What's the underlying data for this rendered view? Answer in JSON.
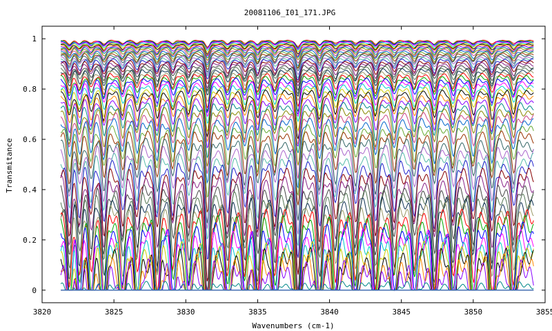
{
  "chart_data": {
    "type": "line",
    "title": "20081106_I01_171.JPG",
    "xlabel": "Wavenumbers (cm-1)",
    "ylabel": "Transmitance",
    "xlim": [
      3820,
      3855
    ],
    "ylim": [
      -0.05,
      1.05
    ],
    "x_ticks": [
      "3820",
      "3825",
      "3830",
      "3835",
      "3840",
      "3845",
      "3850",
      "3855"
    ],
    "y_ticks": [
      "0",
      "0.2",
      "0.4",
      "0.6",
      "0.8",
      "1"
    ],
    "x_range": [
      3821.3,
      3854.2
    ],
    "grid": false,
    "legend": "none",
    "absorption_lines_cm1": [
      3821.9,
      3822.6,
      3823.4,
      3824.3,
      3825.6,
      3826.6,
      3828.0,
      3829.1,
      3830.2,
      3831.5,
      3832.9,
      3834.1,
      3835.0,
      3836.2,
      3837.8,
      3839.3,
      3840.4,
      3841.8,
      3843.2,
      3844.5,
      3845.9,
      3847.3,
      3848.6,
      3850.0,
      3851.3,
      3852.8
    ],
    "series_baselines": [
      0.995,
      0.993,
      0.991,
      0.989,
      0.986,
      0.983,
      0.98,
      0.977,
      0.973,
      0.969,
      0.965,
      0.96,
      0.955,
      0.95,
      0.945,
      0.94,
      0.934,
      0.928,
      0.922,
      0.915,
      0.908,
      0.9,
      0.892,
      0.884,
      0.875,
      0.866,
      0.857,
      0.847,
      0.836,
      0.825,
      0.812,
      0.8,
      0.785,
      0.77,
      0.752,
      0.733,
      0.712,
      0.69,
      0.665,
      0.64,
      0.612,
      0.585,
      0.555,
      0.525,
      0.495,
      0.465,
      0.435,
      0.41,
      0.385,
      0.36,
      0.335,
      0.31,
      0.285,
      0.26,
      0.235,
      0.21,
      0.185,
      0.16,
      0.14,
      0.04,
      0.005,
      0.002,
      0.0
    ],
    "colors": [
      "#ff0000",
      "#00aa00",
      "#0000ff",
      "#ff00ff",
      "#00cccc",
      "#cccc00",
      "#000000",
      "#ff8800",
      "#8800ff",
      "#008888",
      "#888800",
      "#cc4488",
      "#0066cc",
      "#66aa33",
      "#993300",
      "#336666",
      "#aa66cc",
      "#55bbaa",
      "#2222cc",
      "#880000",
      "#882288",
      "#444444",
      "#557755",
      "#113355",
      "#999966"
    ]
  }
}
